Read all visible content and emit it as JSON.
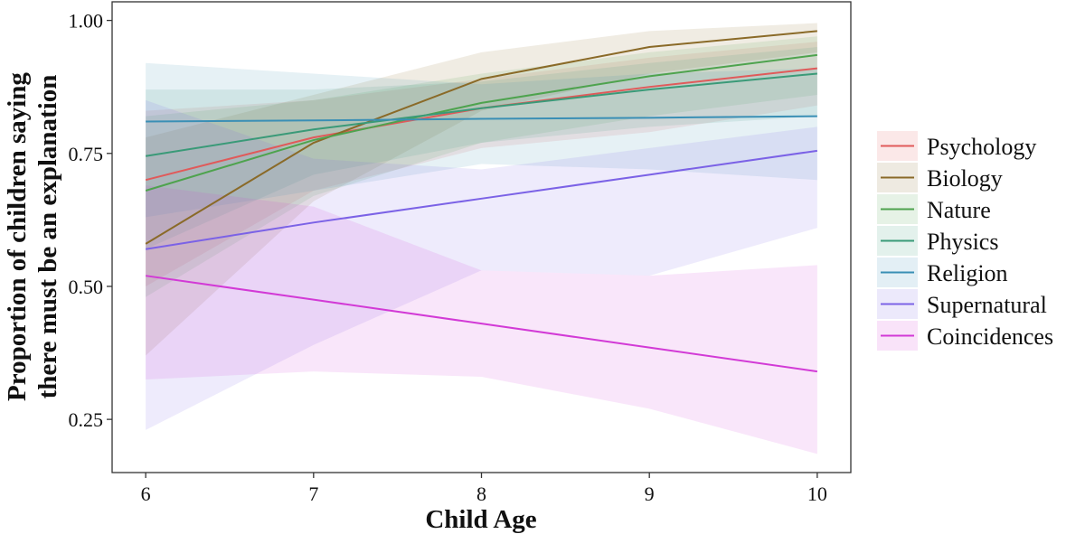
{
  "chart_data": {
    "type": "line",
    "xlabel": "Child Age",
    "ylabel_lines": [
      "Proportion of children saying",
      "there must be an explanation"
    ],
    "x": [
      6,
      7,
      8,
      9,
      10
    ],
    "x_ticks": [
      "6",
      "7",
      "8",
      "9",
      "10"
    ],
    "xlim": [
      5.8,
      10.2
    ],
    "y_ticks": [
      0.25,
      0.5,
      0.75,
      1.0
    ],
    "y_tick_labels": [
      "0.25",
      "0.50",
      "0.75",
      "1.00"
    ],
    "ylim": [
      0.15,
      1.035
    ],
    "grid": false,
    "legend_position": "right",
    "series": [
      {
        "name": "Psychology",
        "color": "#e05a5a",
        "values": [
          0.7,
          0.78,
          0.835,
          0.875,
          0.91
        ],
        "lower": [
          0.5,
          0.68,
          0.76,
          0.79,
          0.84
        ],
        "upper": [
          0.83,
          0.85,
          0.89,
          0.93,
          0.96
        ]
      },
      {
        "name": "Biology",
        "color": "#8a6a28",
        "values": [
          0.58,
          0.77,
          0.89,
          0.95,
          0.98
        ],
        "lower": [
          0.37,
          0.66,
          0.83,
          0.9,
          0.94
        ],
        "upper": [
          0.78,
          0.86,
          0.94,
          0.98,
          0.995
        ]
      },
      {
        "name": "Nature",
        "color": "#4ea34e",
        "values": [
          0.68,
          0.775,
          0.845,
          0.895,
          0.935
        ],
        "lower": [
          0.48,
          0.67,
          0.77,
          0.82,
          0.86
        ],
        "upper": [
          0.82,
          0.85,
          0.9,
          0.94,
          0.97
        ]
      },
      {
        "name": "Physics",
        "color": "#3a9a78",
        "values": [
          0.745,
          0.795,
          0.835,
          0.87,
          0.9
        ],
        "lower": [
          0.57,
          0.71,
          0.77,
          0.8,
          0.82
        ],
        "upper": [
          0.87,
          0.87,
          0.885,
          0.92,
          0.95
        ]
      },
      {
        "name": "Religion",
        "color": "#3a8fb5",
        "values": [
          0.81,
          0.812,
          0.815,
          0.817,
          0.82
        ],
        "lower": [
          0.63,
          0.68,
          0.73,
          0.72,
          0.7
        ],
        "upper": [
          0.92,
          0.9,
          0.88,
          0.9,
          0.91
        ]
      },
      {
        "name": "Supernatural",
        "color": "#7b62e6",
        "values": [
          0.57,
          0.62,
          0.665,
          0.71,
          0.755
        ],
        "lower": [
          0.23,
          0.39,
          0.53,
          0.52,
          0.61
        ],
        "upper": [
          0.85,
          0.74,
          0.72,
          0.76,
          0.8
        ]
      },
      {
        "name": "Coincidences",
        "color": "#d23ad6",
        "values": [
          0.52,
          0.475,
          0.43,
          0.385,
          0.34
        ],
        "lower": [
          0.325,
          0.34,
          0.33,
          0.27,
          0.185
        ],
        "upper": [
          0.69,
          0.65,
          0.53,
          0.52,
          0.54
        ]
      }
    ]
  }
}
